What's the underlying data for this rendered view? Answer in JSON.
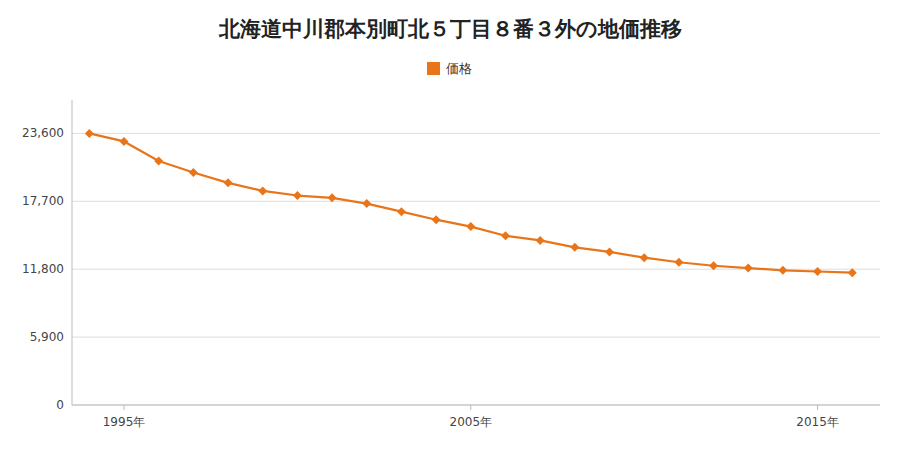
{
  "chart_data": {
    "type": "line",
    "title": "北海道中川郡本別町北５丁目８番３外の地価推移",
    "x": [
      1994,
      1995,
      1996,
      1997,
      1998,
      1999,
      2000,
      2001,
      2002,
      2003,
      2004,
      2005,
      2006,
      2007,
      2008,
      2009,
      2010,
      2011,
      2012,
      2013,
      2014,
      2015,
      2016
    ],
    "series": [
      {
        "name": "価格",
        "color": "#e8751a",
        "marker": "diamond",
        "values": [
          23600,
          22900,
          21200,
          20200,
          19300,
          18600,
          18200,
          18000,
          17500,
          16800,
          16100,
          15500,
          14700,
          14300,
          13700,
          13300,
          12800,
          12400,
          12100,
          11900,
          11700,
          11600,
          11500
        ]
      }
    ],
    "xlim": [
      1993.5,
      2016.8
    ],
    "xticks": [
      {
        "value": 1995,
        "label": "1995年"
      },
      {
        "value": 2005,
        "label": "2005年"
      },
      {
        "value": 2015,
        "label": "2015年"
      }
    ],
    "ylim": [
      0,
      26500
    ],
    "yticks": [
      0,
      {
        "value": 5900,
        "label": "5,900"
      },
      {
        "value": 11800,
        "label": "11,800"
      },
      {
        "value": 17700,
        "label": "17,700"
      },
      {
        "value": 23600,
        "label": "23,600"
      }
    ],
    "grid": true,
    "legend": "top"
  }
}
